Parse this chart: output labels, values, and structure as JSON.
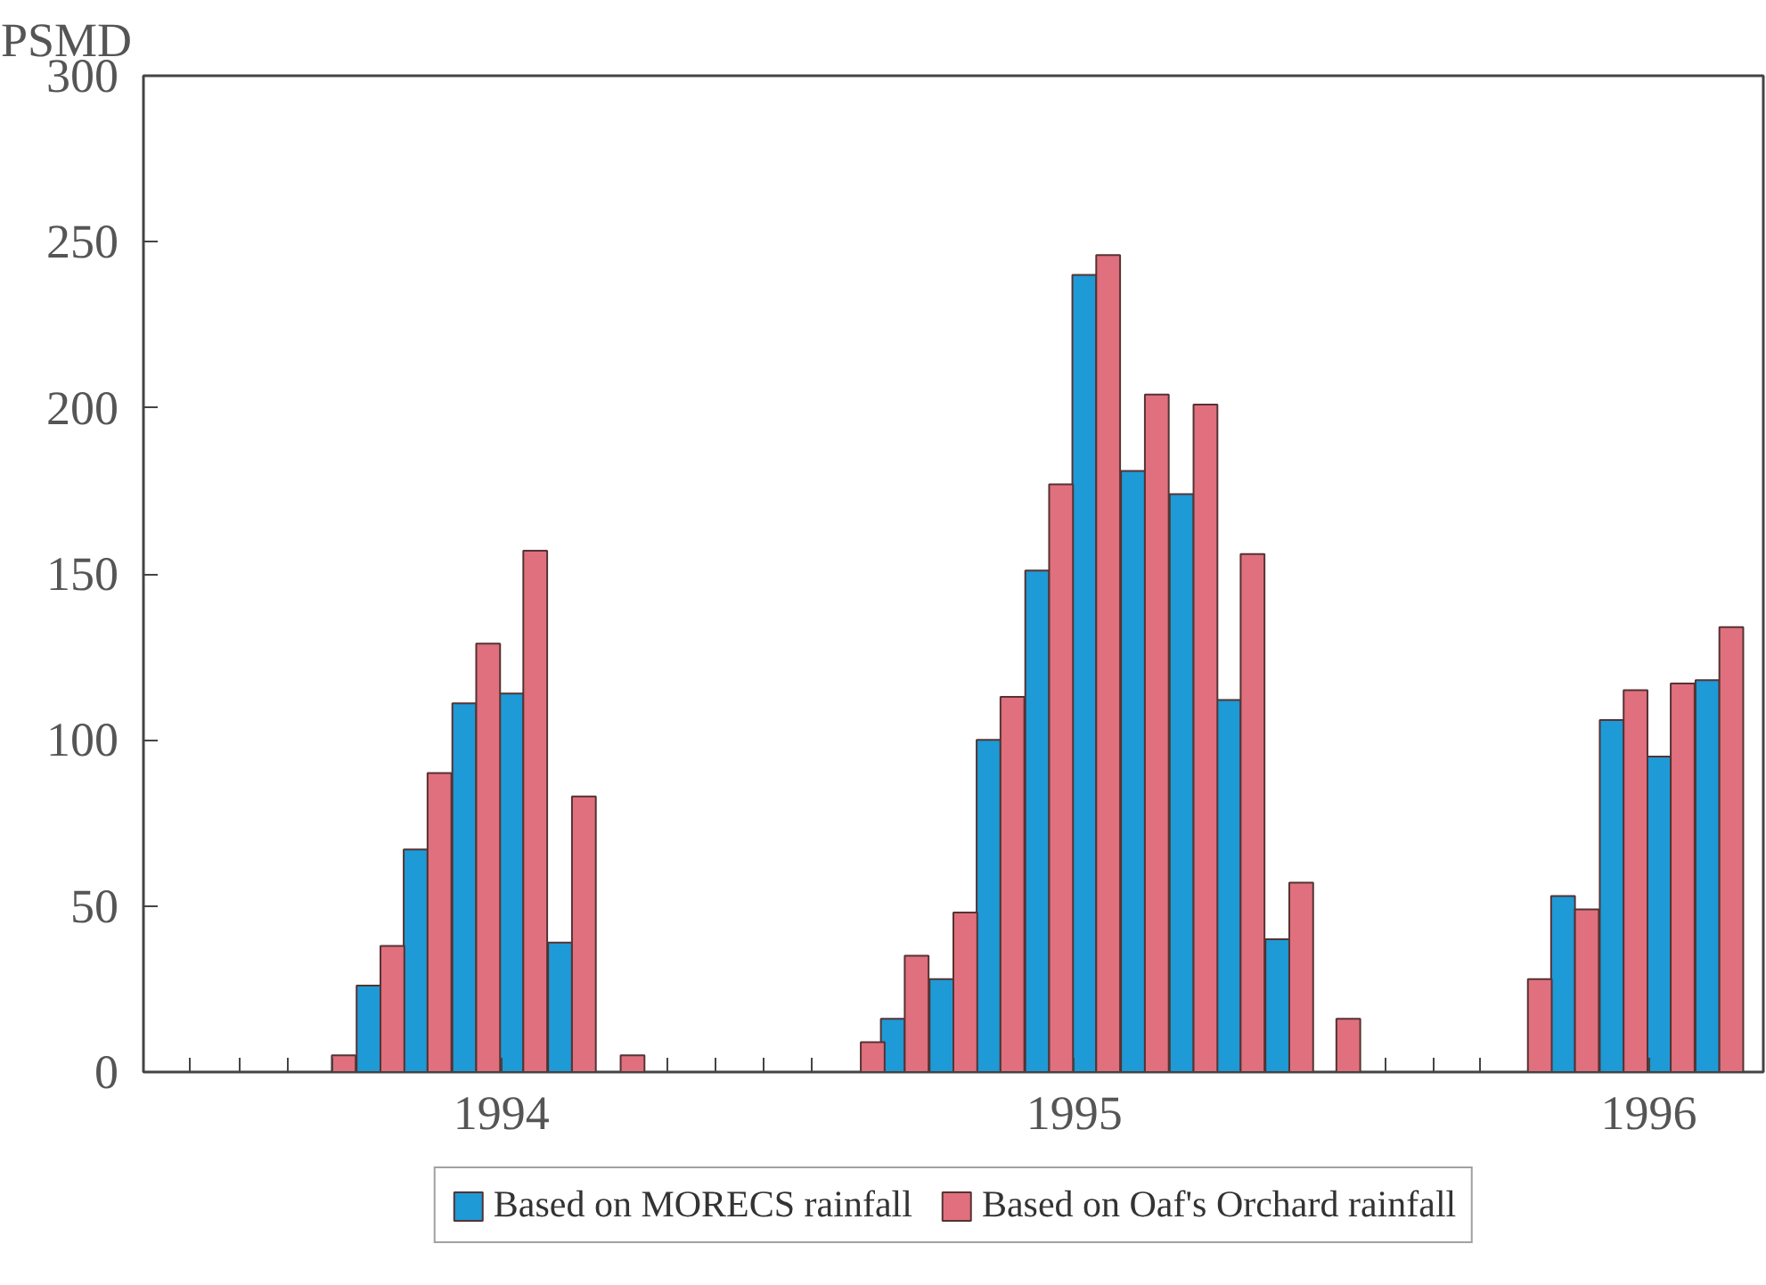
{
  "chart_data": {
    "type": "bar",
    "ylabel": "PSMD",
    "x": [
      "1994-03-15",
      "1994-04-15",
      "1994-05-15",
      "1994-06-15",
      "1994-07-15",
      "1994-08-15",
      "1994-09-15",
      "1995-02-15",
      "1995-03-15",
      "1995-04-15",
      "1995-05-15",
      "1995-06-15",
      "1995-07-15",
      "1995-08-15",
      "1995-09-15",
      "1995-10-15",
      "1995-11-15",
      "1995-12-15",
      "1996-04-15",
      "1996-05-15",
      "1996-06-15",
      "1996-07-15",
      "1996-08-15"
    ],
    "series": [
      {
        "name": "Based on MORECS rainfall",
        "color": "#1e9ad6",
        "values": [
          null,
          26,
          67,
          111,
          114,
          39,
          null,
          null,
          16,
          28,
          100,
          151,
          240,
          181,
          174,
          112,
          40,
          null,
          null,
          53,
          106,
          95,
          118
        ]
      },
      {
        "name": "Based on Oaf's Orchard rainfall",
        "color": "#e0707e",
        "values": [
          5,
          38,
          90,
          129,
          157,
          83,
          5,
          9,
          35,
          48,
          113,
          177,
          246,
          204,
          201,
          156,
          57,
          16,
          28,
          49,
          115,
          117,
          134
        ]
      }
    ],
    "ylim": [
      0,
      300
    ],
    "yticks": [
      0,
      50,
      100,
      150,
      200,
      250,
      300
    ],
    "xlim": [
      "1993-11-15",
      "1996-09-12"
    ],
    "xticks": [
      {
        "value": "1994-07-01",
        "label": "1994"
      },
      {
        "value": "1995-07-01",
        "label": "1995"
      },
      {
        "value": "1996-07-01",
        "label": "1996"
      },
      {
        "value": "1993-12-15",
        "label": null
      },
      {
        "value": "1994-01-15",
        "label": null
      },
      {
        "value": "1994-02-15",
        "label": null
      },
      {
        "value": "1994-03-15",
        "label": null
      },
      {
        "value": "1994-10-15",
        "label": null
      },
      {
        "value": "1994-11-15",
        "label": null
      },
      {
        "value": "1994-12-15",
        "label": null
      },
      {
        "value": "1995-01-15",
        "label": null
      },
      {
        "value": "1996-01-15",
        "label": null
      },
      {
        "value": "1996-02-15",
        "label": null
      },
      {
        "value": "1996-03-15",
        "label": null
      }
    ],
    "grid": false,
    "legend": "bottom"
  }
}
